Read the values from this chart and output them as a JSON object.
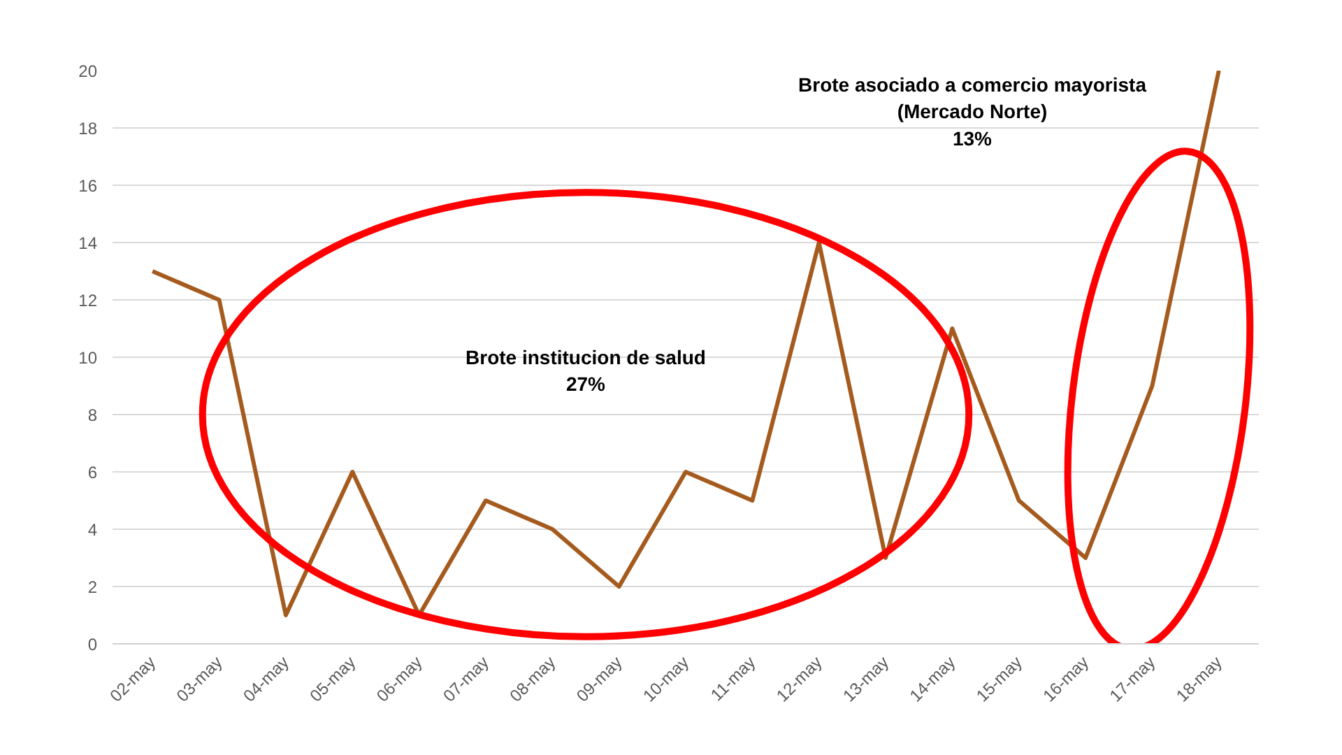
{
  "chart_data": {
    "type": "line",
    "categories": [
      "02-may",
      "03-may",
      "04-may",
      "05-may",
      "06-may",
      "07-may",
      "08-may",
      "09-may",
      "10-may",
      "11-may",
      "12-may",
      "13-may",
      "14-may",
      "15-may",
      "16-may",
      "17-may",
      "18-may"
    ],
    "series": [
      {
        "color": "#a55a1e",
        "values": [
          13,
          12,
          1,
          6,
          1,
          5,
          4,
          2,
          6,
          5,
          14,
          3,
          11,
          5,
          3,
          9,
          20
        ]
      }
    ],
    "ylim": [
      0,
      20
    ],
    "yticks": [
      0,
      2,
      4,
      6,
      8,
      10,
      12,
      14,
      16,
      18,
      20
    ],
    "grid": "y",
    "marker": "none",
    "line_style": "solid",
    "annotations": [
      "Brote institucion de salud\n27%",
      "Brote asociado a comercio mayorista\n(Mercado Norte)\n13%"
    ]
  }
}
